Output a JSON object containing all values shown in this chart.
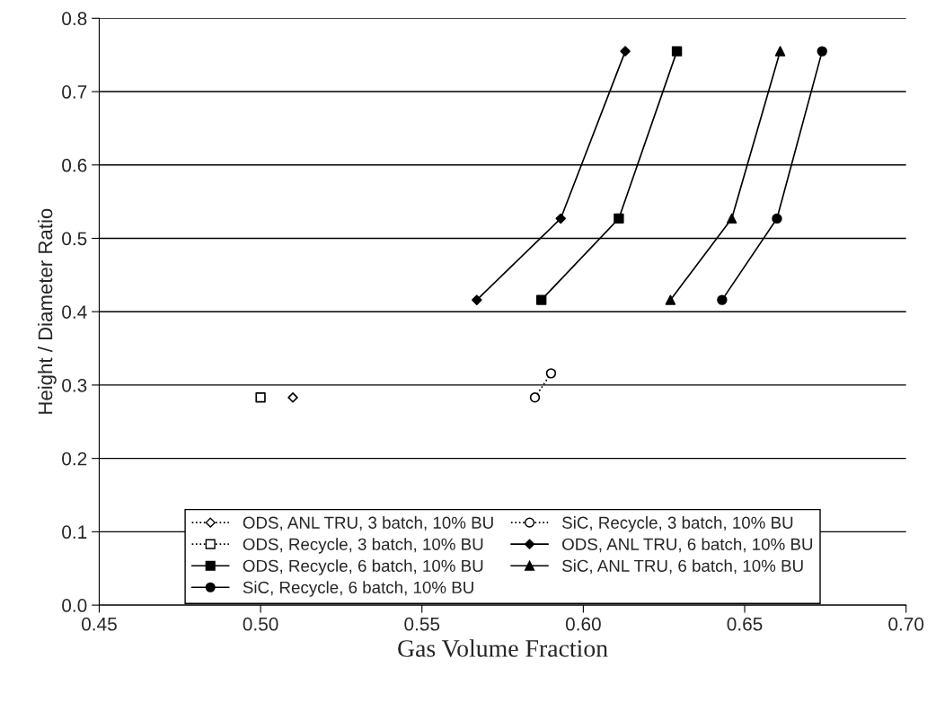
{
  "chart_data": {
    "type": "line",
    "xlabel": "Gas Volume Fraction",
    "ylabel": "Height / Diameter Ratio",
    "xlim": [
      0.45,
      0.7
    ],
    "xticks": [
      {
        "value": 0.45,
        "label": "0.45"
      },
      {
        "value": 0.5,
        "label": "0.50"
      },
      {
        "value": 0.55,
        "label": "0.55"
      },
      {
        "value": 0.6,
        "label": "0.60"
      },
      {
        "value": 0.65,
        "label": "0.65"
      },
      {
        "value": 0.7,
        "label": "0.70"
      }
    ],
    "ylim": [
      0,
      0.8
    ],
    "yticks": [
      {
        "value": 0,
        "label": "0.0"
      },
      0.1,
      0.2,
      0.3,
      0.4,
      0.5,
      0.6,
      0.7,
      0.8
    ],
    "grid": "y",
    "legend": "bottom",
    "series": [
      {
        "name": "ODS, ANL TRU, 3 batch, 10% BU",
        "color": "#000000",
        "marker": "diamond",
        "line_style": "dotted",
        "x": [
          0.51
        ],
        "values": [
          0.283
        ]
      },
      {
        "name": "SiC, Recycle, 3 batch, 10% BU",
        "color": "#000000",
        "marker": "circle",
        "line_style": "dotted",
        "x": [
          0.585,
          0.59
        ],
        "values": [
          0.283,
          0.316
        ]
      },
      {
        "name": "ODS, Recycle, 3 batch, 10% BU",
        "color": "#000000",
        "marker": "square",
        "line_style": "dotted",
        "x": [
          0.5
        ],
        "values": [
          0.283
        ]
      },
      {
        "name": "ODS, ANL TRU, 6 batch, 10% BU",
        "color": "#000000",
        "marker": "diamond",
        "line_style": "solid",
        "x": [
          0.567,
          0.593,
          0.613
        ],
        "values": [
          0.416,
          0.527,
          0.755
        ]
      },
      {
        "name": "ODS, Recycle, 6 batch, 10% BU",
        "color": "#000000",
        "marker": "square",
        "line_style": "solid",
        "x": [
          0.587,
          0.611,
          0.629
        ],
        "values": [
          0.416,
          0.527,
          0.755
        ]
      },
      {
        "name": "SiC, ANL TRU, 6 batch, 10% BU",
        "color": "#000000",
        "marker": "triangle",
        "line_style": "solid",
        "x": [
          0.627,
          0.646,
          0.661
        ],
        "values": [
          0.416,
          0.527,
          0.755
        ]
      },
      {
        "name": "SiC, Recycle, 6 batch, 10% BU",
        "color": "#000000",
        "marker": "circle",
        "line_style": "solid",
        "x": [
          0.643,
          0.66,
          0.674
        ],
        "values": [
          0.416,
          0.527,
          0.755
        ]
      }
    ]
  }
}
